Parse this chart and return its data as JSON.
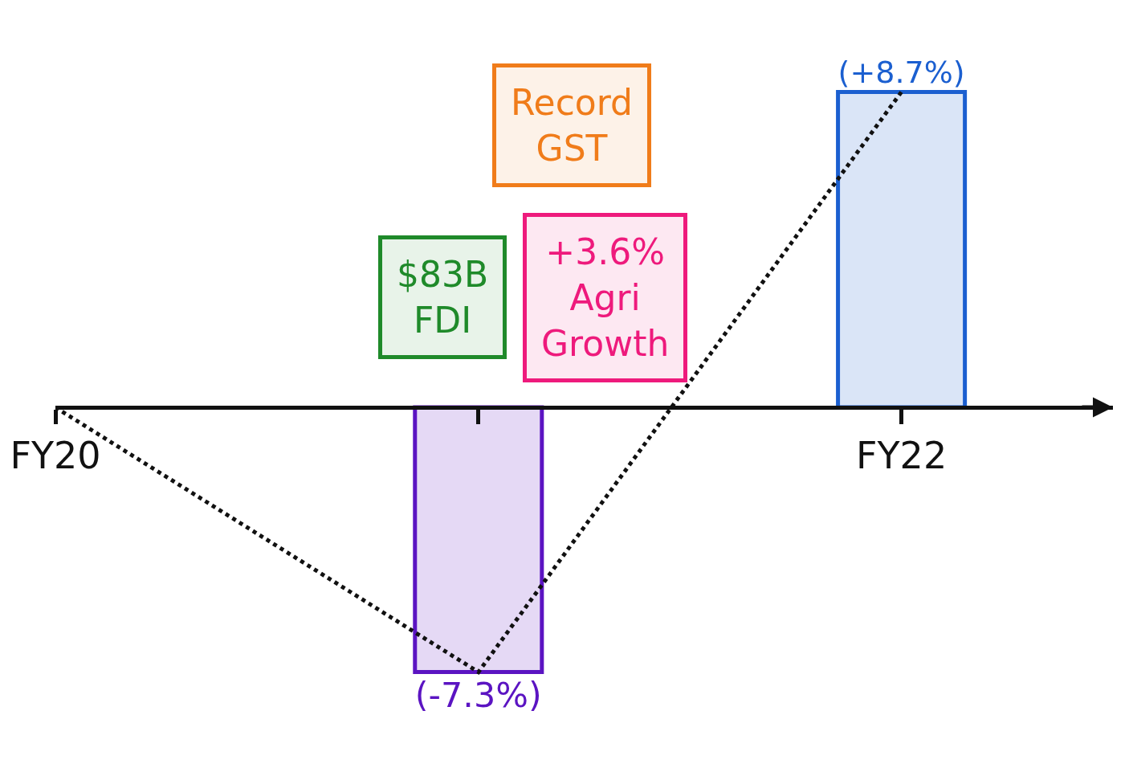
{
  "chart_data": {
    "type": "bar",
    "categories": [
      "FY20",
      null,
      "FY22"
    ],
    "series": [
      {
        "colors": [
          null,
          "#5b14c2",
          "#1b5fd0"
        ],
        "values": [
          null,
          -7.3,
          8.7
        ],
        "value_labels": [
          null,
          "(-7.3%)",
          "(+8.7%)"
        ]
      },
      {
        "type": "line",
        "color": "#111111",
        "values": [
          0,
          -7.3,
          8.7
        ],
        "line_style": "dotted"
      }
    ],
    "annotations": [
      "Record\nGST",
      "$83B\nFDI",
      "+3.6%\nAgri\nGrowth"
    ]
  }
}
